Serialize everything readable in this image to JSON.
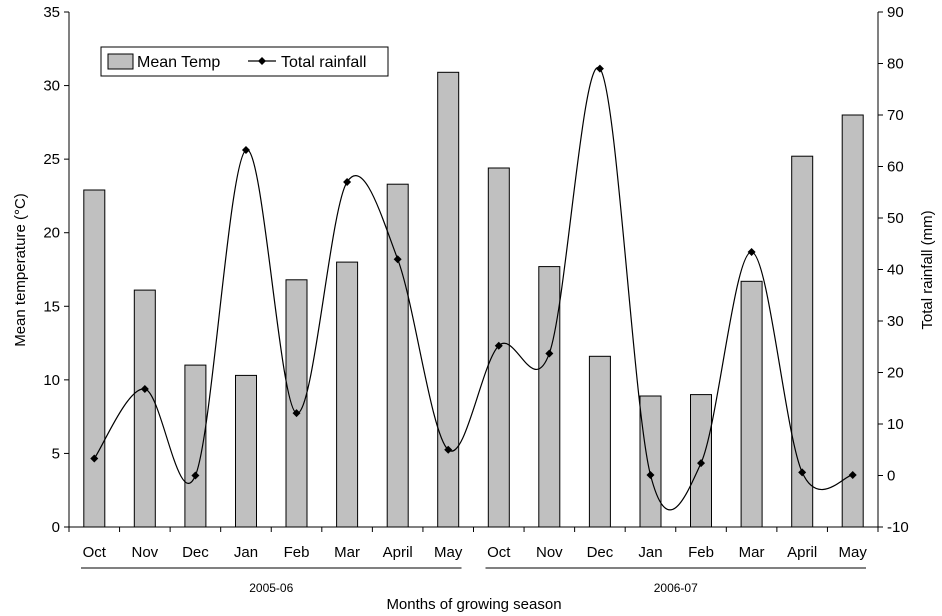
{
  "chart_data": {
    "type": "bar+line",
    "categories": [
      "Oct",
      "Nov",
      "Dec",
      "Jan",
      "Feb",
      "Mar",
      "April",
      "May",
      "Oct",
      "Nov",
      "Dec",
      "Jan",
      "Feb",
      "Mar",
      "April",
      "May"
    ],
    "groups": [
      {
        "label": "2005-06",
        "range": [
          0,
          7
        ]
      },
      {
        "label": "2006-07",
        "range": [
          8,
          15
        ]
      }
    ],
    "series": [
      {
        "name": "Mean Temp",
        "kind": "bar",
        "axis": "left",
        "values": [
          22.9,
          16.1,
          11.0,
          10.3,
          16.8,
          18.0,
          23.3,
          30.9,
          24.4,
          17.7,
          11.6,
          8.9,
          9.0,
          16.7,
          25.2,
          28.0
        ]
      },
      {
        "name": "Total rainfall",
        "kind": "line",
        "axis": "right",
        "values": [
          3.3,
          16.8,
          0.0,
          63.2,
          12.1,
          57.0,
          42.0,
          5.0,
          25.2,
          23.7,
          79.0,
          0.1,
          2.4,
          43.4,
          0.6,
          0.1
        ]
      }
    ],
    "xlabel": "Months of growing season",
    "ylabel_left": "Mean temperature (°C)",
    "ylabel_right": "Total rainfall (mm)",
    "ylim_left": [
      0,
      35
    ],
    "yticks_left": [
      0,
      5,
      10,
      15,
      20,
      25,
      30,
      35
    ],
    "ylim_right": [
      -10,
      90
    ],
    "yticks_right": [
      -10,
      0,
      10,
      20,
      30,
      40,
      50,
      60,
      70,
      80,
      90
    ],
    "legend_position": "top-left",
    "grid": false,
    "colors": {
      "bar_fill": "#c0c0c0",
      "bar_stroke": "#000000",
      "line": "#000000",
      "marker": "#000000"
    }
  }
}
